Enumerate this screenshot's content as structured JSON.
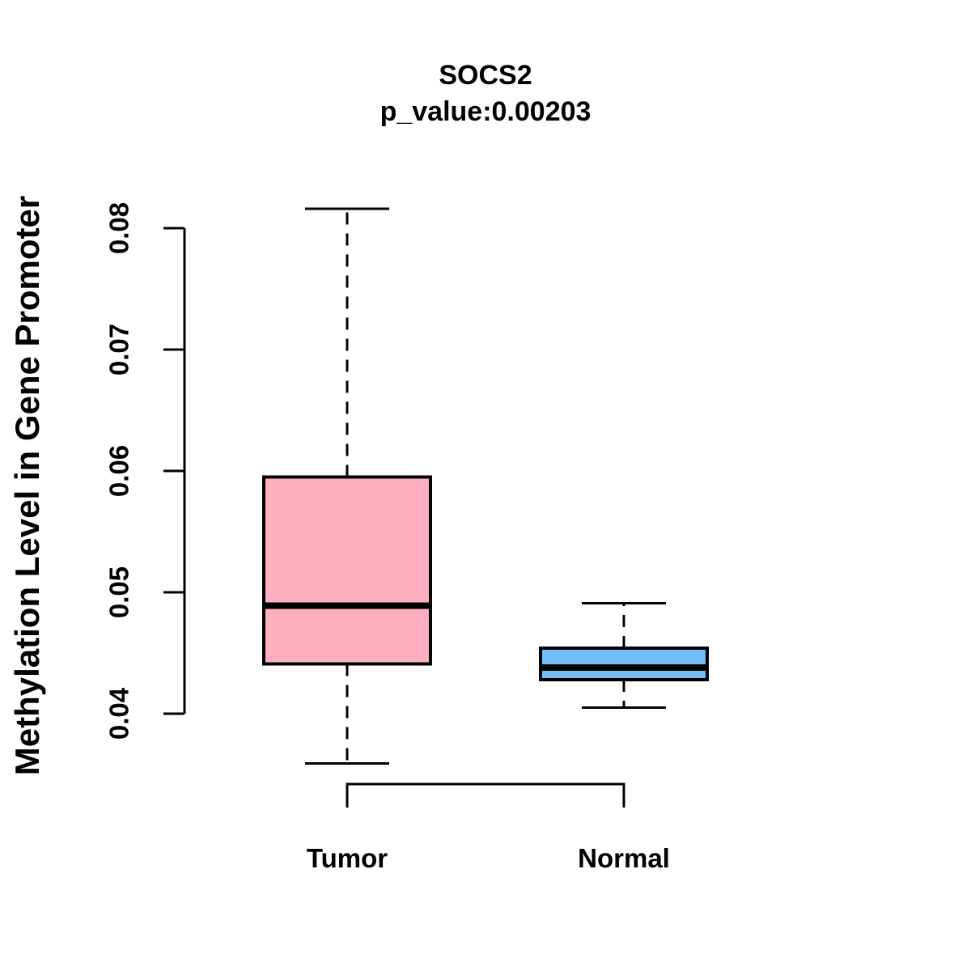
{
  "chart_data": {
    "type": "boxplot",
    "title": "SOCS2",
    "subtitle": "p_value:0.00203",
    "ylabel": "Methylation Level in Gene Promoter",
    "xlabel": "",
    "yticks": [
      0.04,
      0.05,
      0.06,
      0.07,
      0.08
    ],
    "ytick_labels": [
      "0.04",
      "0.05",
      "0.06",
      "0.07",
      "0.08"
    ],
    "y_axis_range_shown": [
      0.04,
      0.08
    ],
    "grid": "off",
    "legend": "none",
    "groups": [
      {
        "label": "Tumor",
        "fill_color": "#FDAEC0",
        "lower_whisker": 0.0359,
        "q1": 0.0441,
        "median": 0.0489,
        "q3": 0.0595,
        "upper_whisker": 0.0816
      },
      {
        "label": "Normal",
        "fill_color": "#73BDF4",
        "lower_whisker": 0.0405,
        "q1": 0.0428,
        "median": 0.0438,
        "q3": 0.0454,
        "upper_whisker": 0.0491
      }
    ],
    "colors": {
      "box_border": "#000000",
      "median_line": "#000000",
      "axis": "#000000",
      "text": "#000000",
      "background": "#FFFFFF"
    }
  }
}
